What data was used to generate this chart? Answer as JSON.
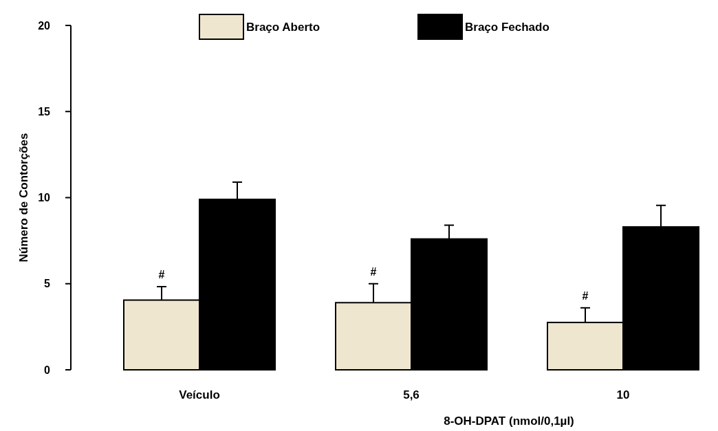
{
  "chart_data": {
    "type": "bar",
    "xlabel": "8-OH-DPAT (nmol/0,1µl)",
    "ylabel": "Número de Contorções",
    "categories": [
      "Veículo",
      "5,6",
      "10"
    ],
    "series": [
      {
        "name": "Braço Aberto",
        "color": "#efe6cf",
        "values": [
          4.05,
          3.9,
          2.75
        ],
        "errors": [
          [
            4.05,
            4.83
          ],
          [
            3.9,
            5.0
          ],
          [
            2.75,
            3.6
          ]
        ]
      },
      {
        "name": "Braço Fechado",
        "color": "#000000",
        "values": [
          9.9,
          7.6,
          8.3
        ],
        "errors": [
          [
            9.9,
            10.9
          ],
          [
            7.6,
            8.4
          ],
          [
            8.3,
            9.55
          ]
        ]
      }
    ],
    "ylim": [
      0,
      20
    ],
    "yticks": [
      0,
      5,
      10,
      15,
      20
    ],
    "grid": false,
    "legend": "top",
    "annotations": [
      "#",
      "#",
      "#"
    ]
  }
}
